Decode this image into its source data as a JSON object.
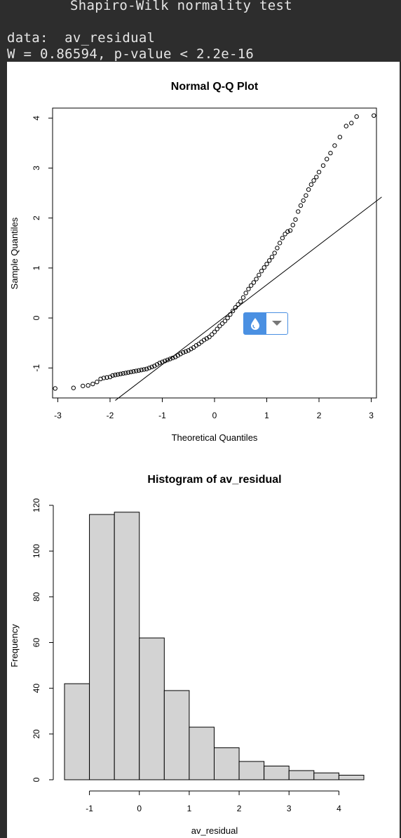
{
  "console": {
    "line1": "Shapiro-Wilk normality test",
    "line2": "data:  av_residual",
    "line3": "W = 0.86594, p-value < 2.2e-16"
  },
  "widget": {
    "left_icon": "droplet-icon",
    "right_icon": "caret-down-icon",
    "accent": "#4a90e2"
  },
  "chart_data": [
    {
      "type": "scatter",
      "title": "Normal Q-Q Plot",
      "xlabel": "Theoretical Quantiles",
      "ylabel": "Sample Quantiles",
      "xlim": [
        -3.1,
        3.1
      ],
      "ylim": [
        -1.6,
        4.2
      ],
      "xticks": [
        -3,
        -2,
        -1,
        0,
        1,
        2,
        3
      ],
      "yticks": [
        -1,
        0,
        1,
        2,
        3,
        4
      ],
      "grid": false,
      "reference_line": {
        "x": [
          -1.9,
          3.2
        ],
        "y": [
          -1.65,
          2.42
        ]
      },
      "points": [
        [
          -3.05,
          -1.41
        ],
        [
          -2.7,
          -1.4
        ],
        [
          -2.52,
          -1.36
        ],
        [
          -2.42,
          -1.35
        ],
        [
          -2.33,
          -1.32
        ],
        [
          -2.25,
          -1.28
        ],
        [
          -2.18,
          -1.22
        ],
        [
          -2.12,
          -1.2
        ],
        [
          -2.06,
          -1.19
        ],
        [
          -2.0,
          -1.18
        ],
        [
          -1.95,
          -1.15
        ],
        [
          -1.9,
          -1.14
        ],
        [
          -1.85,
          -1.13
        ],
        [
          -1.8,
          -1.12
        ],
        [
          -1.75,
          -1.11
        ],
        [
          -1.7,
          -1.1
        ],
        [
          -1.65,
          -1.09
        ],
        [
          -1.6,
          -1.08
        ],
        [
          -1.55,
          -1.07
        ],
        [
          -1.5,
          -1.06
        ],
        [
          -1.45,
          -1.05
        ],
        [
          -1.4,
          -1.04
        ],
        [
          -1.35,
          -1.03
        ],
        [
          -1.3,
          -1.02
        ],
        [
          -1.25,
          -1.0
        ],
        [
          -1.2,
          -0.98
        ],
        [
          -1.15,
          -0.96
        ],
        [
          -1.1,
          -0.93
        ],
        [
          -1.05,
          -0.9
        ],
        [
          -1.0,
          -0.88
        ],
        [
          -0.95,
          -0.86
        ],
        [
          -0.9,
          -0.84
        ],
        [
          -0.85,
          -0.82
        ],
        [
          -0.8,
          -0.8
        ],
        [
          -0.75,
          -0.78
        ],
        [
          -0.7,
          -0.75
        ],
        [
          -0.65,
          -0.72
        ],
        [
          -0.6,
          -0.69
        ],
        [
          -0.55,
          -0.67
        ],
        [
          -0.5,
          -0.65
        ],
        [
          -0.45,
          -0.62
        ],
        [
          -0.4,
          -0.59
        ],
        [
          -0.35,
          -0.55
        ],
        [
          -0.3,
          -0.52
        ],
        [
          -0.25,
          -0.48
        ],
        [
          -0.2,
          -0.44
        ],
        [
          -0.15,
          -0.41
        ],
        [
          -0.1,
          -0.38
        ],
        [
          -0.05,
          -0.33
        ],
        [
          0.0,
          -0.28
        ],
        [
          0.05,
          -0.22
        ],
        [
          0.1,
          -0.16
        ],
        [
          0.15,
          -0.11
        ],
        [
          0.2,
          -0.06
        ],
        [
          0.25,
          0.0
        ],
        [
          0.3,
          0.07
        ],
        [
          0.35,
          0.14
        ],
        [
          0.4,
          0.21
        ],
        [
          0.45,
          0.27
        ],
        [
          0.5,
          0.33
        ],
        [
          0.55,
          0.41
        ],
        [
          0.6,
          0.5
        ],
        [
          0.65,
          0.58
        ],
        [
          0.7,
          0.65
        ],
        [
          0.75,
          0.71
        ],
        [
          0.8,
          0.78
        ],
        [
          0.85,
          0.86
        ],
        [
          0.9,
          0.94
        ],
        [
          0.95,
          1.01
        ],
        [
          1.0,
          1.08
        ],
        [
          1.05,
          1.15
        ],
        [
          1.1,
          1.22
        ],
        [
          1.15,
          1.3
        ],
        [
          1.2,
          1.4
        ],
        [
          1.25,
          1.5
        ],
        [
          1.3,
          1.6
        ],
        [
          1.35,
          1.68
        ],
        [
          1.4,
          1.73
        ],
        [
          1.45,
          1.75
        ],
        [
          1.5,
          1.86
        ],
        [
          1.55,
          1.97
        ],
        [
          1.6,
          2.13
        ],
        [
          1.65,
          2.25
        ],
        [
          1.7,
          2.35
        ],
        [
          1.75,
          2.45
        ],
        [
          1.8,
          2.57
        ],
        [
          1.85,
          2.67
        ],
        [
          1.9,
          2.75
        ],
        [
          1.95,
          2.82
        ],
        [
          2.0,
          2.92
        ],
        [
          2.08,
          3.05
        ],
        [
          2.15,
          3.18
        ],
        [
          2.22,
          3.3
        ],
        [
          2.3,
          3.45
        ],
        [
          2.4,
          3.62
        ],
        [
          2.52,
          3.84
        ],
        [
          2.62,
          3.9
        ],
        [
          2.72,
          4.03
        ],
        [
          3.05,
          4.05
        ]
      ]
    },
    {
      "type": "bar",
      "title": "Histogram of av_residual",
      "xlabel": "av_residual",
      "ylabel": "Frequency",
      "bin_edges": [
        -1.5,
        -1.0,
        -0.5,
        0.0,
        0.5,
        1.0,
        1.5,
        2.0,
        2.5,
        3.0,
        3.5,
        4.0,
        4.5
      ],
      "values": [
        42,
        116,
        117,
        62,
        39,
        23,
        14,
        8,
        6,
        4,
        3,
        2
      ],
      "xlim": [
        -1.5,
        4.5
      ],
      "ylim": [
        0,
        120
      ],
      "xticks": [
        -1,
        0,
        1,
        2,
        3,
        4
      ],
      "yticks": [
        0,
        20,
        40,
        60,
        80,
        100,
        120
      ],
      "bar_color": "#d3d3d3",
      "grid": false
    }
  ]
}
